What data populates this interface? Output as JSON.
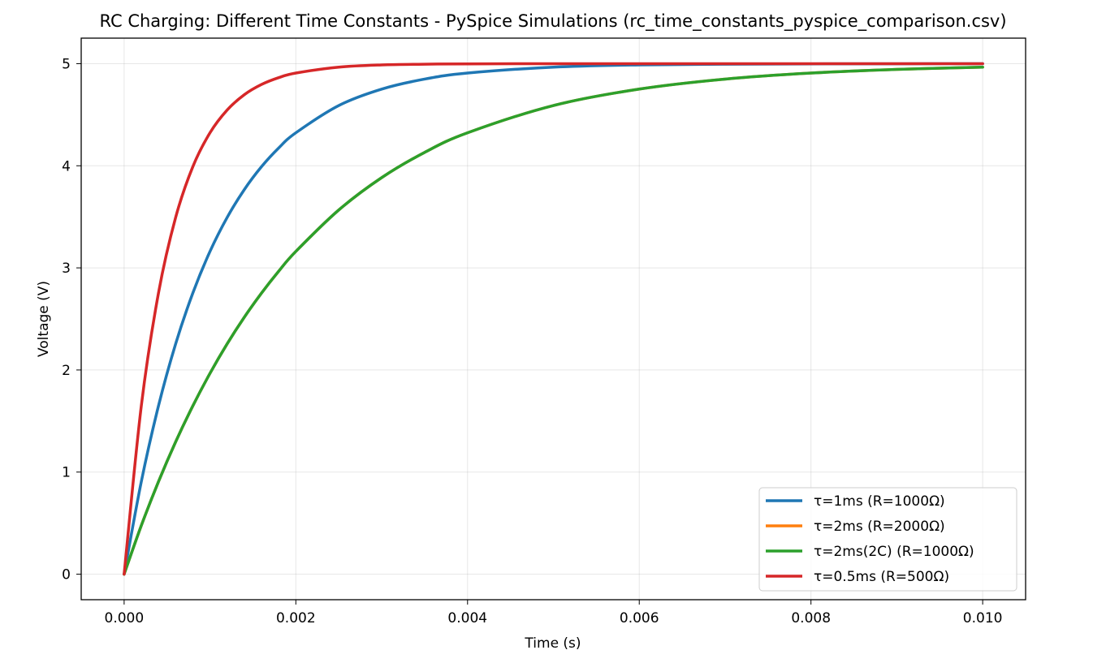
{
  "chart_data": {
    "type": "line",
    "title": "RC Charging: Different Time Constants - PySpice Simulations (rc_time_constants_pyspice_comparison.csv)",
    "xlabel": "Time (s)",
    "ylabel": "Voltage (V)",
    "xlim": [
      -0.0005,
      0.0105
    ],
    "ylim": [
      -0.25,
      5.25
    ],
    "x_ticks": [
      "0.000",
      "0.002",
      "0.004",
      "0.006",
      "0.008",
      "0.010"
    ],
    "x_tick_values": [
      0,
      0.002,
      0.004,
      0.006,
      0.008,
      0.01
    ],
    "y_ticks": [
      "0",
      "1",
      "2",
      "3",
      "4",
      "5"
    ],
    "y_tick_values": [
      0,
      1,
      2,
      3,
      4,
      5
    ],
    "grid": true,
    "legend_position": "lower-right",
    "x": [
      0,
      0.0002,
      0.0004,
      0.0006,
      0.0008,
      0.001,
      0.0012,
      0.0014,
      0.0016,
      0.0018,
      0.002,
      0.0025,
      0.003,
      0.0035,
      0.004,
      0.005,
      0.006,
      0.007,
      0.008,
      0.009,
      0.01
    ],
    "series": [
      {
        "name": "τ=1ms (R=1000Ω)",
        "color": "#1f77b4",
        "values": [
          0,
          0.906,
          1.648,
          2.256,
          2.753,
          3.161,
          3.494,
          3.767,
          3.991,
          4.174,
          4.323,
          4.59,
          4.751,
          4.849,
          4.908,
          4.966,
          4.988,
          4.995,
          4.998,
          4.999,
          5.0
        ]
      },
      {
        "name": "τ=2ms (R=2000Ω)",
        "color": "#ff7f0e",
        "values": [
          0,
          0.476,
          0.906,
          1.296,
          1.648,
          1.967,
          2.256,
          2.517,
          2.753,
          2.967,
          3.161,
          3.567,
          3.884,
          4.131,
          4.323,
          4.59,
          4.751,
          4.849,
          4.908,
          4.944,
          4.966
        ]
      },
      {
        "name": "τ=2ms(2C) (R=1000Ω)",
        "color": "#2ca02c",
        "values": [
          0,
          0.476,
          0.906,
          1.296,
          1.648,
          1.967,
          2.256,
          2.517,
          2.753,
          2.967,
          3.161,
          3.567,
          3.884,
          4.131,
          4.323,
          4.59,
          4.751,
          4.849,
          4.908,
          4.944,
          4.966
        ]
      },
      {
        "name": "τ=0.5ms (R=500Ω)",
        "color": "#d62728",
        "values": [
          0,
          1.648,
          2.753,
          3.494,
          3.991,
          4.323,
          4.546,
          4.696,
          4.796,
          4.863,
          4.908,
          4.966,
          4.988,
          4.995,
          4.998,
          5.0,
          5.0,
          5.0,
          5.0,
          5.0,
          5.0
        ]
      }
    ]
  }
}
